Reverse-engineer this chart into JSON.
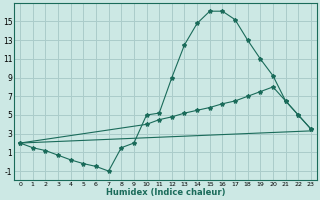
{
  "xlabel": "Humidex (Indice chaleur)",
  "bg_color": "#cce8e4",
  "grid_color": "#aaccca",
  "line_color": "#1a6b5a",
  "xlim": [
    -0.5,
    23.5
  ],
  "ylim": [
    -2.0,
    17.0
  ],
  "xticks": [
    0,
    1,
    2,
    3,
    4,
    5,
    6,
    7,
    8,
    9,
    10,
    11,
    12,
    13,
    14,
    15,
    16,
    17,
    18,
    19,
    20,
    21,
    22,
    23
  ],
  "yticks": [
    -1,
    1,
    3,
    5,
    7,
    9,
    11,
    13,
    15
  ],
  "line1_x": [
    0,
    1,
    2,
    3,
    4,
    5,
    6,
    7,
    8,
    9,
    10,
    11,
    12,
    13,
    14,
    15,
    16,
    17,
    18,
    19,
    20,
    21,
    22,
    23
  ],
  "line1_y": [
    2.0,
    1.5,
    1.2,
    0.7,
    0.2,
    -0.2,
    -0.5,
    -1.0,
    1.5,
    2.0,
    5.0,
    5.2,
    9.0,
    12.5,
    14.8,
    16.1,
    16.1,
    15.2,
    13.0,
    11.0,
    9.2,
    6.5,
    5.0,
    3.5
  ],
  "line2_x": [
    0,
    10,
    11,
    12,
    13,
    14,
    15,
    16,
    17,
    18,
    19,
    20,
    21,
    22,
    23
  ],
  "line2_y": [
    2.0,
    4.0,
    4.5,
    4.8,
    5.2,
    5.5,
    5.8,
    6.2,
    6.5,
    7.0,
    7.5,
    8.0,
    6.5,
    5.0,
    3.5
  ],
  "line3_x": [
    0,
    23
  ],
  "line3_y": [
    2.0,
    3.3
  ]
}
